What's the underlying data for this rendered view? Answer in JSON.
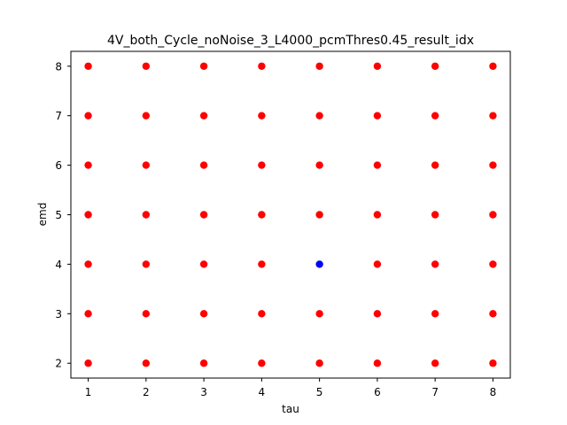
{
  "chart_data": {
    "type": "scatter",
    "title": "4V_both_Cycle_noNoise_3_L4000_pcmThres0.45_result_idx",
    "xlabel": "tau",
    "ylabel": "emd",
    "xlim": [
      0.7,
      8.3
    ],
    "ylim": [
      1.7,
      8.3
    ],
    "xticks": [
      1,
      2,
      3,
      4,
      5,
      6,
      7,
      8
    ],
    "yticks": [
      2,
      3,
      4,
      5,
      6,
      7,
      8
    ],
    "grid": false,
    "legend": "none",
    "series": [
      {
        "color": "#ff0000",
        "points": [
          [
            1,
            2
          ],
          [
            1,
            3
          ],
          [
            1,
            4
          ],
          [
            1,
            5
          ],
          [
            1,
            6
          ],
          [
            1,
            7
          ],
          [
            1,
            8
          ],
          [
            2,
            2
          ],
          [
            2,
            3
          ],
          [
            2,
            4
          ],
          [
            2,
            5
          ],
          [
            2,
            6
          ],
          [
            2,
            7
          ],
          [
            2,
            8
          ],
          [
            3,
            2
          ],
          [
            3,
            3
          ],
          [
            3,
            4
          ],
          [
            3,
            5
          ],
          [
            3,
            6
          ],
          [
            3,
            7
          ],
          [
            3,
            8
          ],
          [
            4,
            2
          ],
          [
            4,
            3
          ],
          [
            4,
            4
          ],
          [
            4,
            5
          ],
          [
            4,
            6
          ],
          [
            4,
            7
          ],
          [
            4,
            8
          ],
          [
            5,
            2
          ],
          [
            5,
            3
          ],
          [
            5,
            5
          ],
          [
            5,
            6
          ],
          [
            5,
            7
          ],
          [
            5,
            8
          ],
          [
            6,
            2
          ],
          [
            6,
            3
          ],
          [
            6,
            4
          ],
          [
            6,
            5
          ],
          [
            6,
            6
          ],
          [
            6,
            7
          ],
          [
            6,
            8
          ],
          [
            7,
            2
          ],
          [
            7,
            3
          ],
          [
            7,
            4
          ],
          [
            7,
            5
          ],
          [
            7,
            6
          ],
          [
            7,
            7
          ],
          [
            7,
            8
          ],
          [
            8,
            2
          ],
          [
            8,
            3
          ],
          [
            8,
            4
          ],
          [
            8,
            5
          ],
          [
            8,
            6
          ],
          [
            8,
            7
          ],
          [
            8,
            8
          ]
        ]
      },
      {
        "color": "#0000ff",
        "points": [
          [
            5,
            4
          ]
        ]
      }
    ]
  }
}
